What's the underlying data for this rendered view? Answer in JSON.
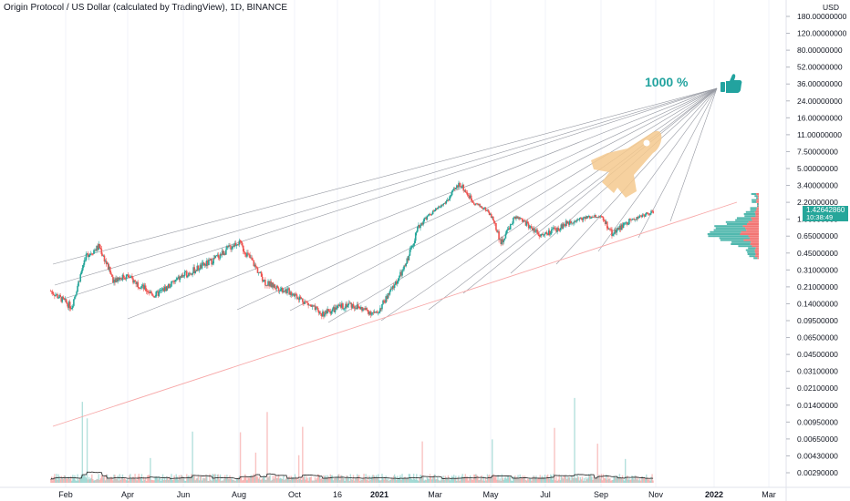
{
  "header": {
    "title": "Origin Protocol / US Dollar (calculated by TradingView), 1D, BINANCE"
  },
  "colors": {
    "up": "#26a69a",
    "down": "#ef5350",
    "accent": "#22a39f",
    "fan_line": "#9598a1",
    "support_line": "#f7a8a8",
    "rocket": "#f5c98e",
    "badge_bg": "#26a69a"
  },
  "annotation": {
    "text": "1000 %",
    "icon": "thumbs-up-icon",
    "decoration": "rocket-icon"
  },
  "price_axis": {
    "unit": "USD",
    "labels": [
      "180.00000000",
      "120.00000000",
      "80.00000000",
      "52.00000000",
      "36.00000000",
      "24.00000000",
      "16.00000000",
      "11.00000000",
      "7.50000000",
      "5.00000000",
      "3.40000000",
      "2.20000000",
      "1.00000000",
      "0.65000000",
      "0.45000000",
      "0.31000000",
      "0.21000000",
      "0.14000000",
      "0.09500000",
      "0.06500000",
      "0.04500000",
      "0.03100000",
      "0.02100000",
      "0.01400000",
      "0.00950000",
      "0.00650000",
      "0.00430000",
      "0.00290000"
    ],
    "current_price": "1.42642860",
    "countdown": "10:38:49"
  },
  "time_axis": {
    "labels": [
      "Feb",
      "Apr",
      "Jun",
      "Aug",
      "Oct",
      "16",
      "2021",
      "Mar",
      "May",
      "Jul",
      "Sep",
      "Nov",
      "2022",
      "Mar"
    ]
  },
  "chart_data": {
    "type": "candlestick",
    "title": "Origin Protocol / US Dollar (calculated by TradingView), 1D, BINANCE",
    "y_scale": "log",
    "ylim": [
      0.0025,
      200
    ],
    "x_labels": [
      "Feb",
      "Apr",
      "Jun",
      "Aug",
      "Oct",
      "16",
      "2021",
      "Mar",
      "May",
      "Jul",
      "Sep",
      "Nov",
      "2022",
      "Mar"
    ],
    "price_path": [
      {
        "x": "Jan 2020",
        "y": 0.19
      },
      {
        "x": "Feb 2020",
        "y": 0.13
      },
      {
        "x": "Feb 2020",
        "y": 0.42
      },
      {
        "x": "Mar 2020",
        "y": 0.52
      },
      {
        "x": "Mar 2020",
        "y": 0.25
      },
      {
        "x": "Apr 2020",
        "y": 0.27
      },
      {
        "x": "May 2020",
        "y": 0.17
      },
      {
        "x": "Jun 2020",
        "y": 0.27
      },
      {
        "x": "Jul 2020",
        "y": 0.37
      },
      {
        "x": "Aug 2020",
        "y": 0.58
      },
      {
        "x": "Aug 2020",
        "y": 0.38
      },
      {
        "x": "Sep 2020",
        "y": 0.23
      },
      {
        "x": "Oct 2020",
        "y": 0.18
      },
      {
        "x": "Nov 2020",
        "y": 0.11
      },
      {
        "x": "Dec 2020",
        "y": 0.14
      },
      {
        "x": "Jan 2021",
        "y": 0.11
      },
      {
        "x": "Feb 2021",
        "y": 0.32
      },
      {
        "x": "Feb 2021",
        "y": 0.8
      },
      {
        "x": "Mar 2021",
        "y": 1.35
      },
      {
        "x": "Apr 2021",
        "y": 3.6
      },
      {
        "x": "Apr 2021",
        "y": 2.2
      },
      {
        "x": "May 2021",
        "y": 1.5
      },
      {
        "x": "May 2021",
        "y": 0.55
      },
      {
        "x": "Jun 2021",
        "y": 1.1
      },
      {
        "x": "Jul 2021",
        "y": 0.65
      },
      {
        "x": "Aug 2021",
        "y": 0.95
      },
      {
        "x": "Sep 2021",
        "y": 1.2
      },
      {
        "x": "Sep 2021",
        "y": 0.7
      },
      {
        "x": "Oct 2021",
        "y": 0.9
      },
      {
        "x": "Nov 2021",
        "y": 1.43
      }
    ],
    "volume_series": {
      "type": "bar",
      "color_up": "#26a69a",
      "color_down": "#ef5350"
    },
    "last_price": 1.4264286,
    "drawings": {
      "fan_lines": 13,
      "support_line": "trend line under price",
      "target_label": "1000 %"
    }
  }
}
